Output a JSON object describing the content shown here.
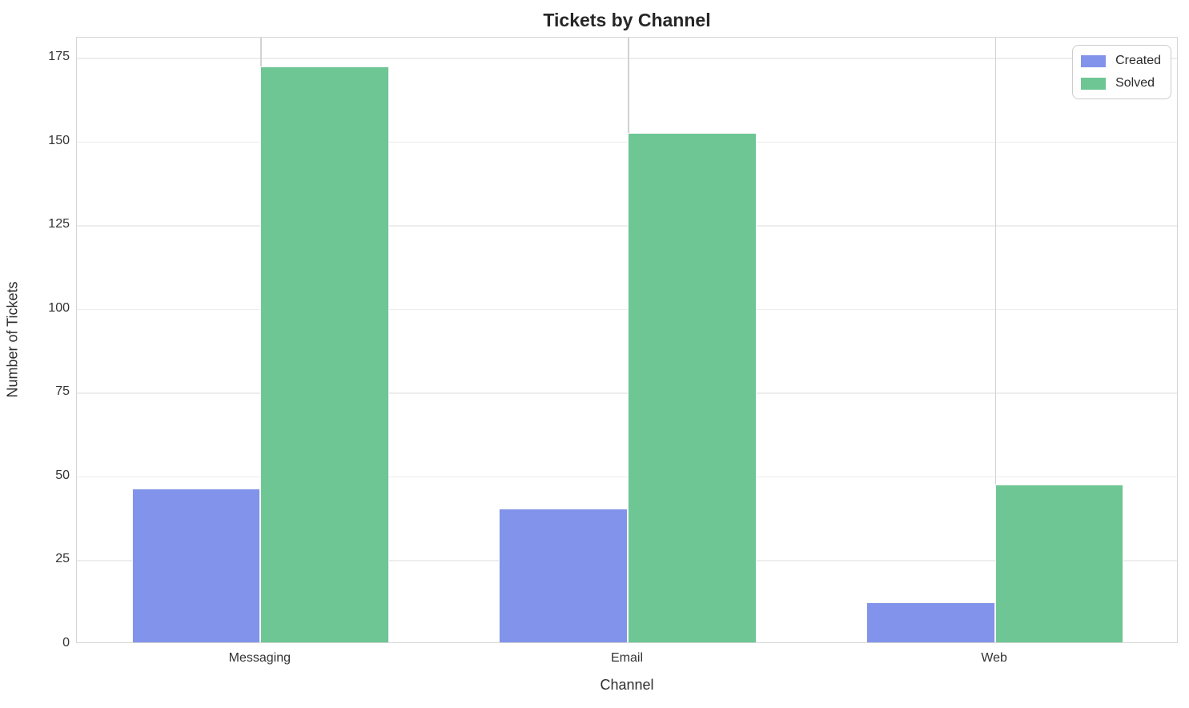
{
  "chart_data": {
    "type": "bar",
    "title": "Tickets by Channel",
    "xlabel": "Channel",
    "ylabel": "Number of Tickets",
    "categories": [
      "Messaging",
      "Email",
      "Web"
    ],
    "series": [
      {
        "name": "Created",
        "color": "#8193EA",
        "values": [
          46,
          40,
          12
        ]
      },
      {
        "name": "Solved",
        "color": "#6DC694",
        "values": [
          172,
          152,
          47
        ]
      }
    ],
    "yticks": [
      0,
      25,
      50,
      75,
      100,
      125,
      150,
      175
    ],
    "ylim": [
      0,
      181
    ],
    "grid": "on",
    "legend_position": "upper right",
    "bar_width_category_units": 0.35
  }
}
